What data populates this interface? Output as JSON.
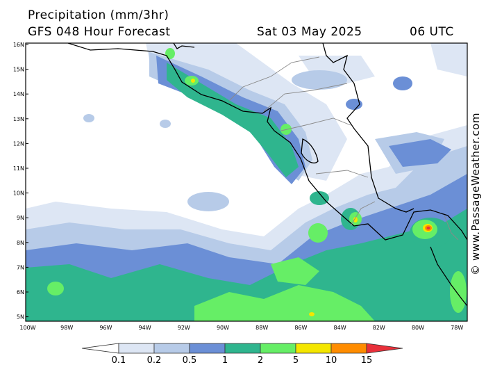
{
  "header": {
    "title": "Precipitation (mm/3hr)",
    "subtitle": "GFS 048 Hour Forecast",
    "date": "Sat 03 May 2025",
    "time": "06 UTC"
  },
  "credit": "© www.PassageWeather.com",
  "map": {
    "lat_labels": [
      "16N",
      "15N",
      "14N",
      "13N",
      "12N",
      "11N",
      "10N",
      "9N",
      "8N",
      "7N",
      "6N",
      "5N"
    ],
    "lon_labels": [
      "100W",
      "98W",
      "96W",
      "94W",
      "92W",
      "90W",
      "88W",
      "86W",
      "84W",
      "82W",
      "80W",
      "78W"
    ]
  },
  "legend": {
    "labels": [
      "0.1",
      "0.2",
      "0.5",
      "1",
      "2",
      "5",
      "10",
      "15"
    ],
    "colors": [
      "#dde6f4",
      "#b7cbe8",
      "#6b8fd6",
      "#2fb58e",
      "#66ee66",
      "#f4e600",
      "#ff8c00",
      "#e8303a"
    ]
  }
}
